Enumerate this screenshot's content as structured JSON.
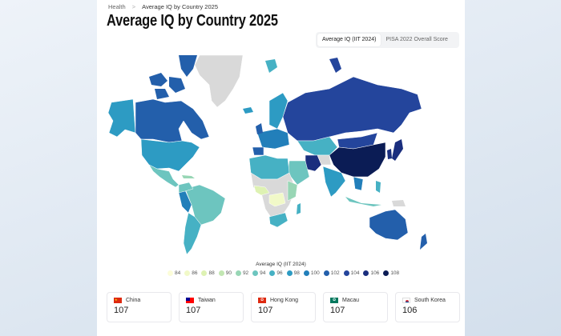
{
  "breadcrumb": {
    "parent": "Health",
    "separator": ">",
    "current": "Average IQ by Country 2025"
  },
  "page_title": "Average IQ by Country 2025",
  "tabs": [
    {
      "label": "Average IQ (IIT 2024)",
      "active": true
    },
    {
      "label": "PISA 2022 Overall Score",
      "active": false
    }
  ],
  "legend": {
    "title": "Average IQ (IIT 2024)",
    "items": [
      {
        "label": "84",
        "color": "#fcfdd9"
      },
      {
        "label": "86",
        "color": "#f1f9c8"
      },
      {
        "label": "88",
        "color": "#def2b3"
      },
      {
        "label": "90",
        "color": "#c2e6b2"
      },
      {
        "label": "92",
        "color": "#98d6b5"
      },
      {
        "label": "94",
        "color": "#6dc5bf"
      },
      {
        "label": "96",
        "color": "#46b1c4"
      },
      {
        "label": "98",
        "color": "#2d9bc3"
      },
      {
        "label": "100",
        "color": "#227fba"
      },
      {
        "label": "102",
        "color": "#235fab"
      },
      {
        "label": "104",
        "color": "#24459c"
      },
      {
        "label": "106",
        "color": "#1a2e7e"
      },
      {
        "label": "108",
        "color": "#0b1c55"
      }
    ],
    "no_data_color": "#d9d9d9"
  },
  "top_countries": [
    {
      "name": "China",
      "value": "107",
      "flag": "china-flag-icon"
    },
    {
      "name": "Taiwan",
      "value": "107",
      "flag": "taiwan-flag-icon"
    },
    {
      "name": "Hong Kong",
      "value": "107",
      "flag": "hong-kong-flag-icon"
    },
    {
      "name": "Macau",
      "value": "107",
      "flag": "macau-flag-icon"
    },
    {
      "name": "South Korea",
      "value": "106",
      "flag": "south-korea-flag-icon"
    }
  ]
}
